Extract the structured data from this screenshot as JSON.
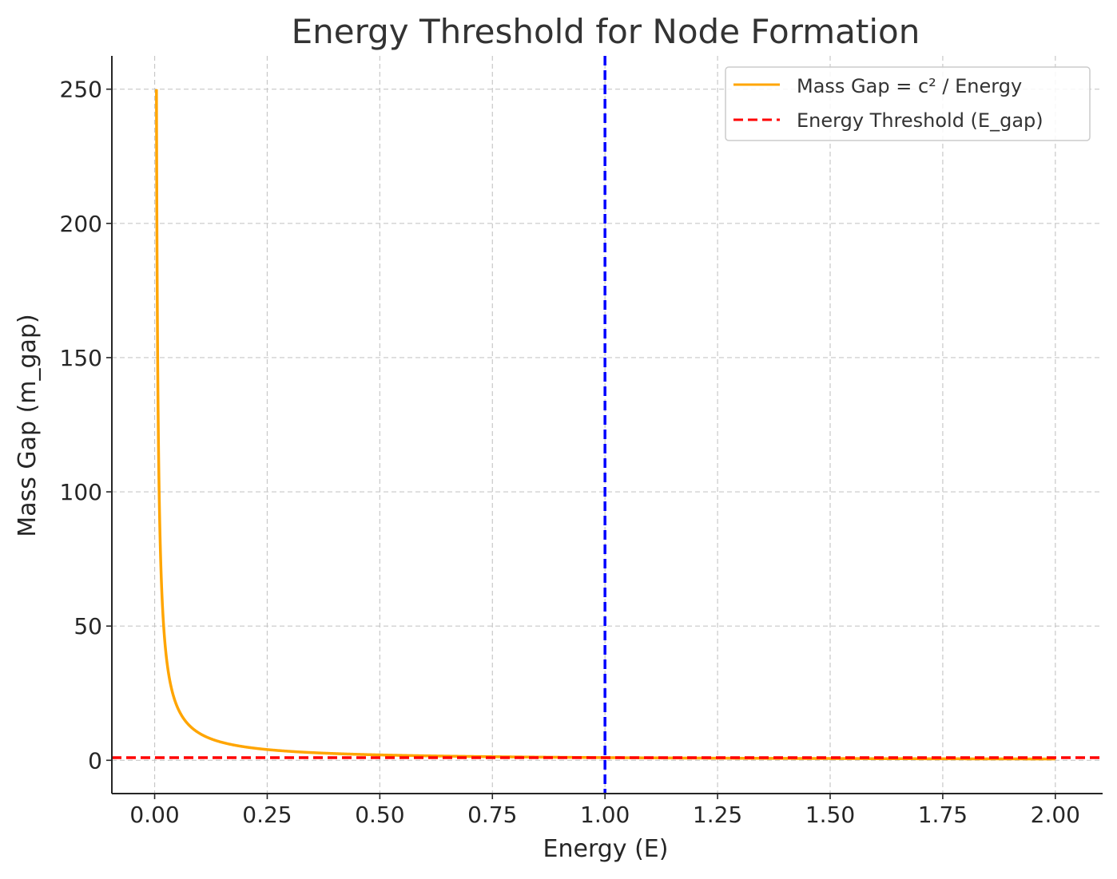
{
  "chart_data": {
    "type": "line",
    "title": "Energy Threshold for Node Formation",
    "xlabel": "Energy (E)",
    "ylabel": "Mass Gap (m_gap)",
    "xlim": [
      -0.095,
      2.105
    ],
    "ylim": [
      -12.4,
      262.4
    ],
    "x_ticks": [
      "0.00",
      "0.25",
      "0.50",
      "0.75",
      "1.00",
      "1.25",
      "1.50",
      "1.75",
      "2.00"
    ],
    "x_tick_values": [
      0,
      0.25,
      0.5,
      0.75,
      1.0,
      1.25,
      1.5,
      1.75,
      2.0
    ],
    "y_ticks": [
      "0",
      "50",
      "100",
      "150",
      "200",
      "250"
    ],
    "y_tick_values": [
      0,
      50,
      100,
      150,
      200,
      250
    ],
    "grid": true,
    "legend_position": "top-right",
    "series": [
      {
        "name": "Mass Gap = c² / Energy",
        "kind": "curve",
        "formula": "1/x",
        "x_range": [
          0.004,
          2.0
        ],
        "color": "#ffa500",
        "line_style": "solid"
      },
      {
        "name": "Energy Threshold (E_gap)",
        "kind": "hline",
        "y": 1,
        "color": "#ff0000",
        "line_style": "dashed"
      }
    ],
    "annotations": [
      {
        "kind": "vline",
        "x": 1.0,
        "color": "#0000ff",
        "line_style": "dashed"
      }
    ]
  }
}
